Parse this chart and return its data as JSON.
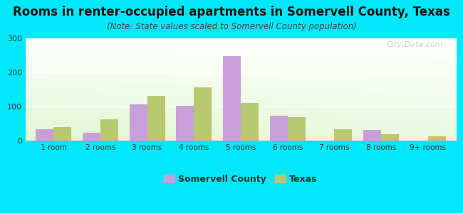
{
  "title": "Rooms in renter-occupied apartments in Somervell County, Texas",
  "subtitle": "(Note: State values scaled to Somervell County population)",
  "categories": [
    "1 room",
    "2 rooms",
    "3 rooms",
    "4 rooms",
    "5 rooms",
    "6 rooms",
    "7 rooms",
    "8 rooms",
    "9+ rooms"
  ],
  "somervell_values": [
    33,
    22,
    107,
    102,
    248,
    72,
    0,
    32,
    0
  ],
  "texas_values": [
    40,
    62,
    132,
    157,
    110,
    68,
    33,
    18,
    13
  ],
  "somervell_color": "#c8a0d8",
  "texas_color": "#b8c870",
  "background_outer": "#00e8f8",
  "ylim": [
    0,
    300
  ],
  "yticks": [
    0,
    100,
    200,
    300
  ],
  "bar_width": 0.38,
  "title_fontsize": 12,
  "subtitle_fontsize": 8.5,
  "legend_labels": [
    "Somervell County",
    "Texas"
  ],
  "watermark": "City-Data.com"
}
